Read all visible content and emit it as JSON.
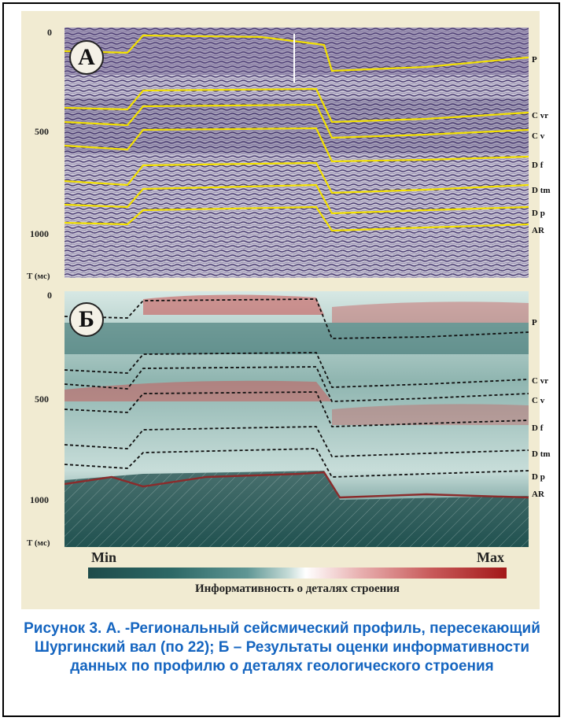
{
  "panel_a": {
    "letter": "А",
    "time_ticks": [
      "0",
      "500",
      "1000"
    ],
    "axis_label": "T (мс)"
  },
  "panel_b": {
    "letter": "Б",
    "time_ticks": [
      "0",
      "500",
      "1000"
    ],
    "axis_label": "T (мс)"
  },
  "horizons": [
    "P",
    "C vr",
    "C v",
    "D f",
    "D tm",
    "D p",
    "AR"
  ],
  "colorbar": {
    "min_label": "Min",
    "max_label": "Max",
    "caption": "Информативность о деталях строения"
  },
  "caption": "Рисунок 3. А. -Региональный сейсмический профиль, пересекающий Шургинский вал (по 22); Б – Результаты оценки информативности данных по профилю о деталях геологического строения",
  "colors": {
    "horizon_a": "#f2e000",
    "horizon_b": "#111111",
    "ar_line_b": "#8b2b2b",
    "caption": "#1565c0"
  }
}
